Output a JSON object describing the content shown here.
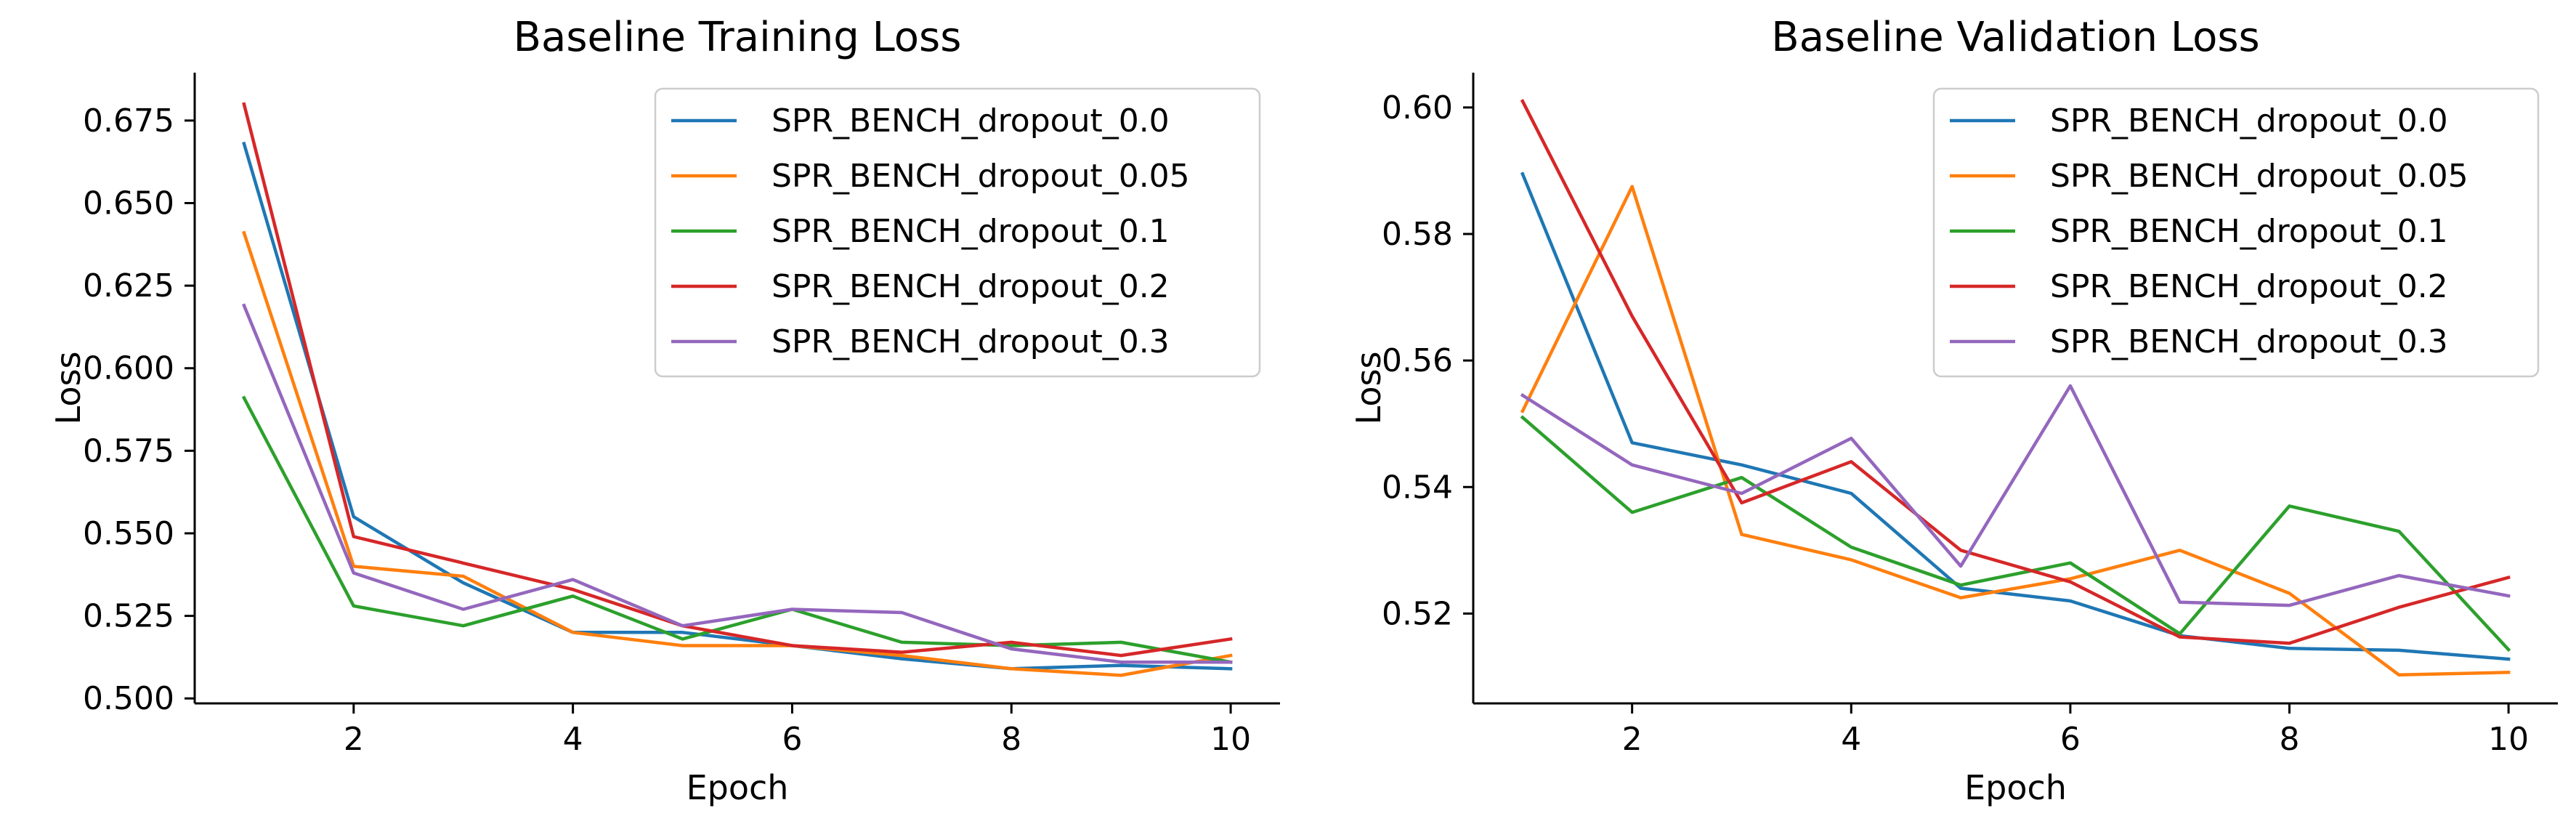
{
  "chart_data": [
    {
      "type": "line",
      "title": "Baseline Training Loss",
      "xlabel": "Epoch",
      "ylabel": "Loss",
      "x": [
        1,
        2,
        3,
        4,
        5,
        6,
        7,
        8,
        9,
        10
      ],
      "xlim": [
        0.55,
        10.45
      ],
      "ylim": [
        0.4985,
        0.6895
      ],
      "xticks": [
        2,
        4,
        6,
        8,
        10
      ],
      "yticks": [
        0.5,
        0.525,
        0.55,
        0.575,
        0.6,
        0.625,
        0.65,
        0.675
      ],
      "ytick_labels": [
        "0.500",
        "0.525",
        "0.550",
        "0.575",
        "0.600",
        "0.625",
        "0.650",
        "0.675"
      ],
      "grid": false,
      "legend_position": "upper right",
      "series": [
        {
          "name": "SPR_BENCH_dropout_0.0",
          "color": "#1f77b4",
          "values": [
            0.668,
            0.555,
            0.535,
            0.52,
            0.52,
            0.516,
            0.512,
            0.509,
            0.51,
            0.509
          ]
        },
        {
          "name": "SPR_BENCH_dropout_0.05",
          "color": "#ff7f0e",
          "values": [
            0.641,
            0.54,
            0.537,
            0.52,
            0.516,
            0.516,
            0.513,
            0.509,
            0.507,
            0.513
          ]
        },
        {
          "name": "SPR_BENCH_dropout_0.1",
          "color": "#2ca02c",
          "values": [
            0.591,
            0.528,
            0.522,
            0.531,
            0.518,
            0.527,
            0.517,
            0.516,
            0.517,
            0.511
          ]
        },
        {
          "name": "SPR_BENCH_dropout_0.2",
          "color": "#d62728",
          "values": [
            0.68,
            0.549,
            0.541,
            0.533,
            0.522,
            0.516,
            0.514,
            0.517,
            0.513,
            0.518
          ]
        },
        {
          "name": "SPR_BENCH_dropout_0.3",
          "color": "#9467bd",
          "values": [
            0.619,
            0.538,
            0.527,
            0.536,
            0.522,
            0.527,
            0.526,
            0.515,
            0.511,
            0.511
          ]
        }
      ]
    },
    {
      "type": "line",
      "title": "Baseline Validation Loss",
      "xlabel": "Epoch",
      "ylabel": "Loss",
      "x": [
        1,
        2,
        3,
        4,
        5,
        6,
        7,
        8,
        9,
        10
      ],
      "xlim": [
        0.55,
        10.45
      ],
      "ylim": [
        0.5058,
        0.6055
      ],
      "xticks": [
        2,
        4,
        6,
        8,
        10
      ],
      "yticks": [
        0.52,
        0.54,
        0.56,
        0.58,
        0.6
      ],
      "ytick_labels": [
        "0.52",
        "0.54",
        "0.56",
        "0.58",
        "0.60"
      ],
      "grid": false,
      "legend_position": "upper right",
      "series": [
        {
          "name": "SPR_BENCH_dropout_0.0",
          "color": "#1f77b4",
          "values": [
            0.5895,
            0.547,
            0.5435,
            0.539,
            0.524,
            0.522,
            0.5165,
            0.5145,
            0.5142,
            0.5128
          ]
        },
        {
          "name": "SPR_BENCH_dropout_0.05",
          "color": "#ff7f0e",
          "values": [
            0.552,
            0.5875,
            0.5325,
            0.5285,
            0.5225,
            0.5255,
            0.53,
            0.5232,
            0.5103,
            0.5107
          ]
        },
        {
          "name": "SPR_BENCH_dropout_0.1",
          "color": "#2ca02c",
          "values": [
            0.551,
            0.536,
            0.5415,
            0.5305,
            0.5245,
            0.528,
            0.5168,
            0.537,
            0.533,
            0.5143
          ]
        },
        {
          "name": "SPR_BENCH_dropout_0.2",
          "color": "#d62728",
          "values": [
            0.601,
            0.567,
            0.5375,
            0.544,
            0.53,
            0.525,
            0.5163,
            0.5153,
            0.521,
            0.5257
          ]
        },
        {
          "name": "SPR_BENCH_dropout_0.3",
          "color": "#9467bd",
          "values": [
            0.5545,
            0.5435,
            0.539,
            0.5477,
            0.5275,
            0.556,
            0.5218,
            0.5213,
            0.526,
            0.5228
          ]
        }
      ]
    }
  ]
}
